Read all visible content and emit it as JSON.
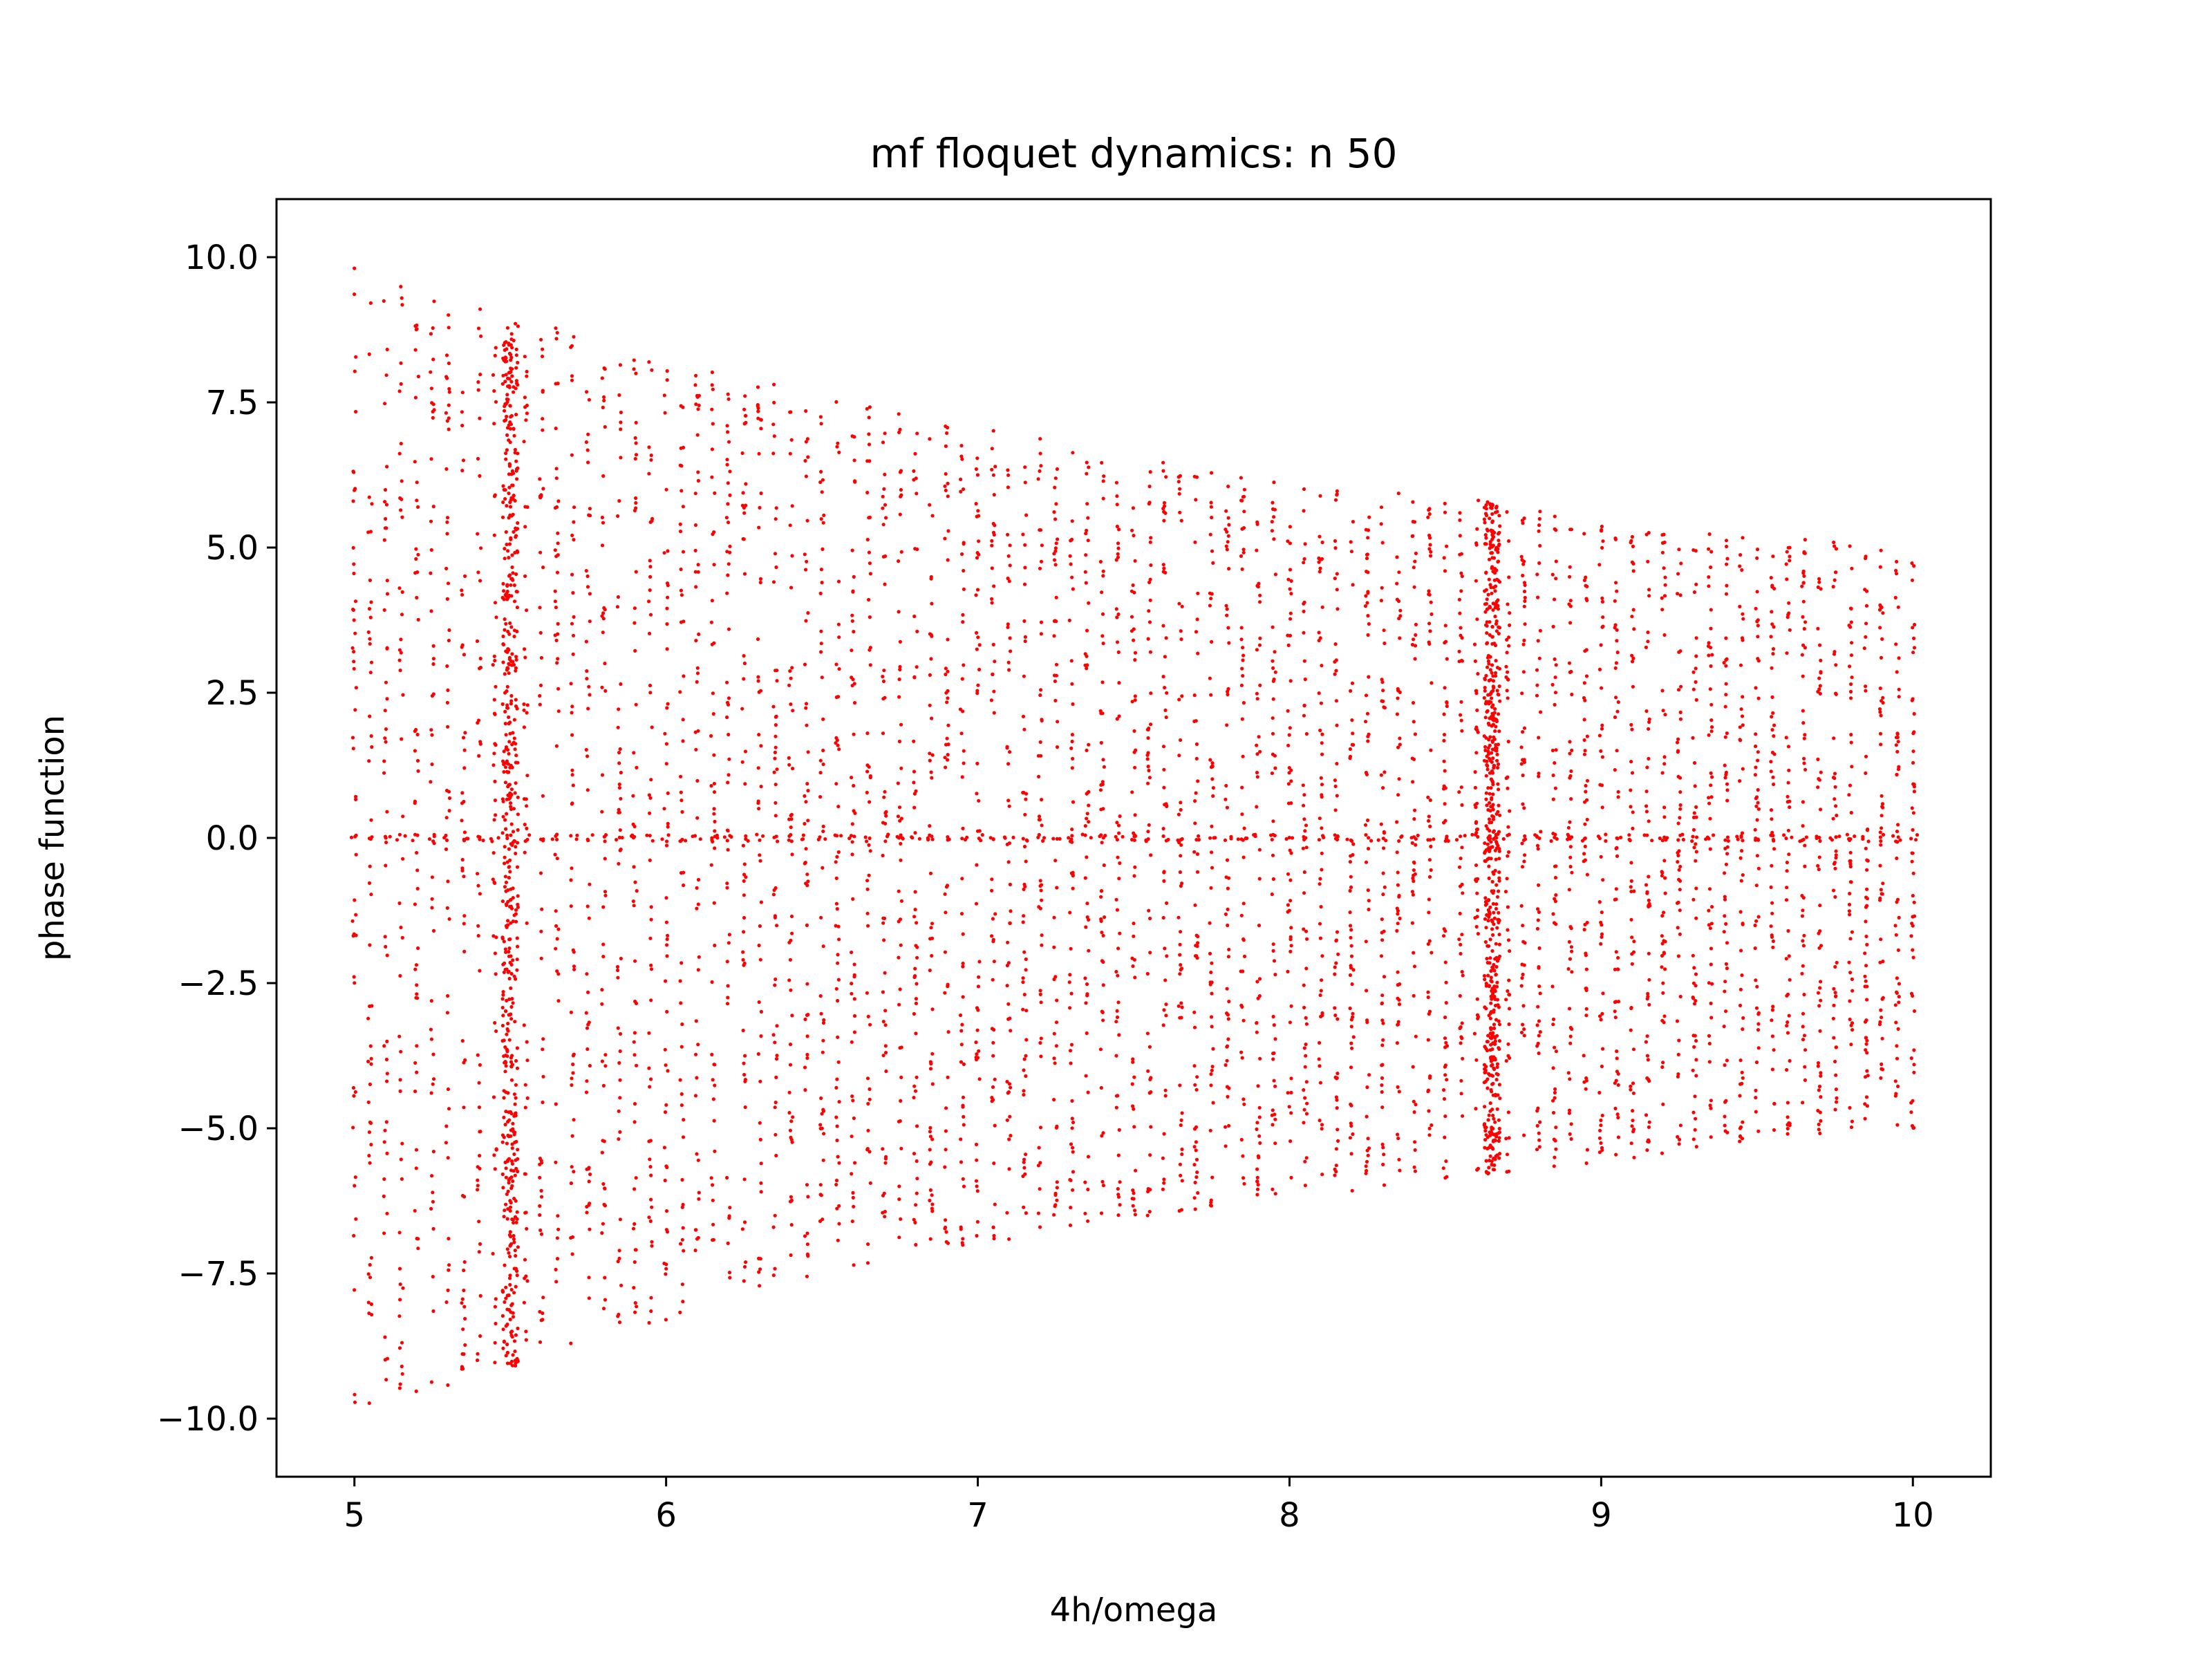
{
  "chart_data": {
    "type": "scatter",
    "title": "mf floquet dynamics: n 50",
    "xlabel": "4h/omega",
    "ylabel": "phase function",
    "xlim": [
      4.75,
      10.25
    ],
    "ylim": [
      -11,
      11
    ],
    "x_ticks": [
      5,
      6,
      7,
      8,
      9,
      10
    ],
    "x_tick_labels": [
      "5",
      "6",
      "7",
      "8",
      "9",
      "10"
    ],
    "y_ticks": [
      10,
      7.5,
      5,
      2.5,
      0,
      -2.5,
      -5,
      -7.5,
      -10
    ],
    "y_tick_labels": [
      "10.0",
      "7.5",
      "5.0",
      "2.5",
      "0.0",
      "−2.5",
      "−5.0",
      "−7.5",
      "−10.0"
    ],
    "grid": false,
    "legend": "none",
    "marker_color": "#ff0000",
    "series": [
      {
        "x_range": [
          5.0,
          10.0
        ],
        "x_step": 0.05,
        "envelope_upper": [
          [
            5.0,
            9.9
          ],
          [
            5.5,
            9.0
          ],
          [
            6.0,
            8.3
          ],
          [
            6.5,
            7.6
          ],
          [
            7.0,
            7.1
          ],
          [
            7.5,
            6.6
          ],
          [
            8.0,
            6.2
          ],
          [
            8.65,
            5.8
          ],
          [
            9.0,
            5.4
          ],
          [
            9.5,
            5.2
          ],
          [
            10.0,
            5.0
          ]
        ],
        "envelope_lower": [
          [
            5.0,
            -10.0
          ],
          [
            5.5,
            -9.1
          ],
          [
            6.0,
            -8.3
          ],
          [
            6.5,
            -7.5
          ],
          [
            7.0,
            -7.0
          ],
          [
            7.5,
            -6.6
          ],
          [
            8.0,
            -6.2
          ],
          [
            8.65,
            -5.8
          ],
          [
            9.0,
            -5.6
          ],
          [
            9.5,
            -5.2
          ],
          [
            10.0,
            -5.0
          ]
        ],
        "dense_columns": [
          5.5,
          8.65
        ],
        "zero_line": 0
      }
    ]
  }
}
